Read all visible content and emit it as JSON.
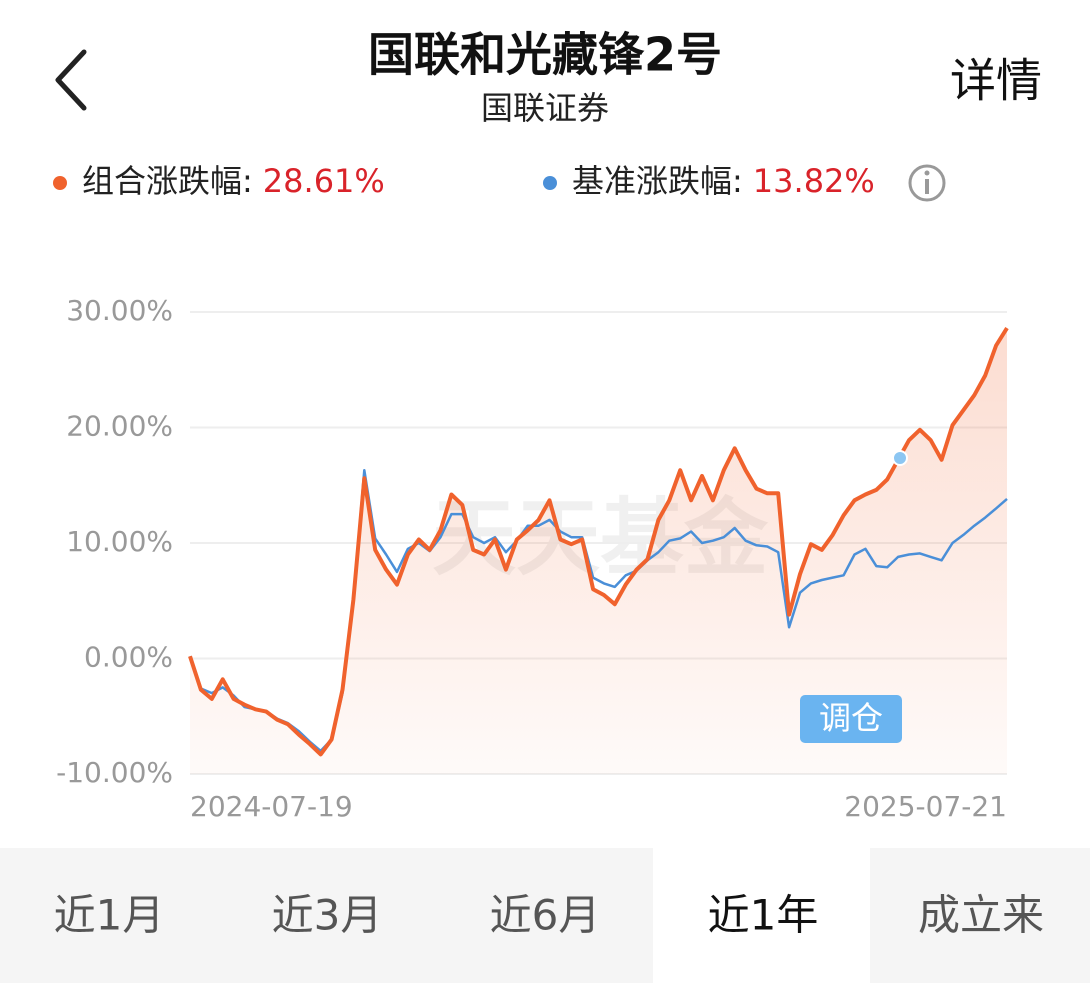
{
  "header": {
    "title": "国联和光藏锋2号",
    "subtitle": "国联证券",
    "detail": "详情"
  },
  "chart_data": {
    "type": "line",
    "categories": [
      "2024-07-19",
      null,
      null,
      null,
      null,
      null,
      null,
      null,
      null,
      null,
      null,
      null,
      null,
      null,
      null,
      null,
      null,
      null,
      null,
      null,
      null,
      null,
      null,
      null,
      null,
      null,
      null,
      null,
      null,
      null,
      null,
      null,
      null,
      null,
      null,
      null,
      null,
      null,
      null,
      null,
      null,
      null,
      null,
      null,
      null,
      null,
      null,
      null,
      null,
      null,
      null,
      null,
      null,
      null,
      null,
      null,
      null,
      null,
      null,
      null,
      null,
      null,
      null,
      null,
      null,
      null,
      null,
      null,
      null,
      null,
      null,
      null,
      null,
      null,
      null,
      "2025-07-21"
    ],
    "series": [
      {
        "name": "组合涨跌幅:",
        "total_label": "28.61%",
        "color": "#f0622d",
        "values": [
          0.2,
          -2.7,
          -3.5,
          -1.8,
          -3.5,
          -4,
          -4.4,
          -4.6,
          -5.3,
          -5.7,
          -6.6,
          -7.4,
          -8.3,
          -7,
          -2.7,
          5.1,
          15.6,
          9.4,
          7.7,
          6.4,
          9,
          10.3,
          9.4,
          11.1,
          14.2,
          13.3,
          9.4,
          9,
          10.3,
          7.7,
          10.3,
          11.1,
          12,
          13.7,
          10.3,
          9.9,
          10.3,
          6,
          5.5,
          4.7,
          6.4,
          7.7,
          8.6,
          12,
          13.7,
          16.3,
          13.7,
          15.8,
          13.7,
          16.3,
          18.2,
          16.3,
          14.7,
          14.3,
          14.3,
          3.8,
          7.3,
          9.9,
          9.4,
          10.7,
          12.4,
          13.7,
          14.2,
          14.6,
          15.5,
          17.2,
          18.9,
          19.8,
          18.9,
          17.2,
          20.2,
          21.5,
          22.8,
          24.5,
          27.1,
          28.61
        ]
      },
      {
        "name": "基准涨跌幅:",
        "total_label": "13.82%",
        "color": "#4a8fd8",
        "values": [
          0.2,
          -2.6,
          -3,
          -2.5,
          -3.2,
          -4.2,
          -4.4,
          -4.6,
          -5.2,
          -5.6,
          -6.3,
          -7.2,
          -8,
          -7,
          -3,
          5,
          16.3,
          10.4,
          9,
          7.5,
          9.5,
          10,
          9.3,
          10.5,
          12.5,
          12.5,
          10.5,
          10,
          10.5,
          9.2,
          10.2,
          11.5,
          11.5,
          12,
          11,
          10.5,
          10.5,
          7,
          6.5,
          6.2,
          7.2,
          7.6,
          8.5,
          9.2,
          10.2,
          10.4,
          11,
          10,
          10.2,
          10.5,
          11.3,
          10.2,
          9.8,
          9.7,
          9.2,
          2.7,
          5.7,
          6.5,
          6.8,
          7,
          7.2,
          9,
          9.5,
          8,
          7.9,
          8.8,
          9,
          9.1,
          8.8,
          8.5,
          10,
          10.7,
          11.5,
          12.2,
          13,
          13.82
        ]
      }
    ],
    "ylim": [
      -10,
      30
    ],
    "yticks": [
      {
        "value": -10,
        "label": "-10.00%"
      },
      {
        "value": 0,
        "label": "0.00%"
      },
      {
        "value": 10,
        "label": "10.00%"
      },
      {
        "value": 20,
        "label": "20.00%"
      },
      {
        "value": 30,
        "label": "30.00%"
      }
    ],
    "grid": true,
    "annotation": "调仓",
    "watermark": "天天基金"
  },
  "tabs": [
    {
      "label": "近1月",
      "selected": false
    },
    {
      "label": "近3月",
      "selected": false
    },
    {
      "label": "近6月",
      "selected": false
    },
    {
      "label": "近1年",
      "selected": true
    },
    {
      "label": "成立来",
      "selected": false
    }
  ]
}
